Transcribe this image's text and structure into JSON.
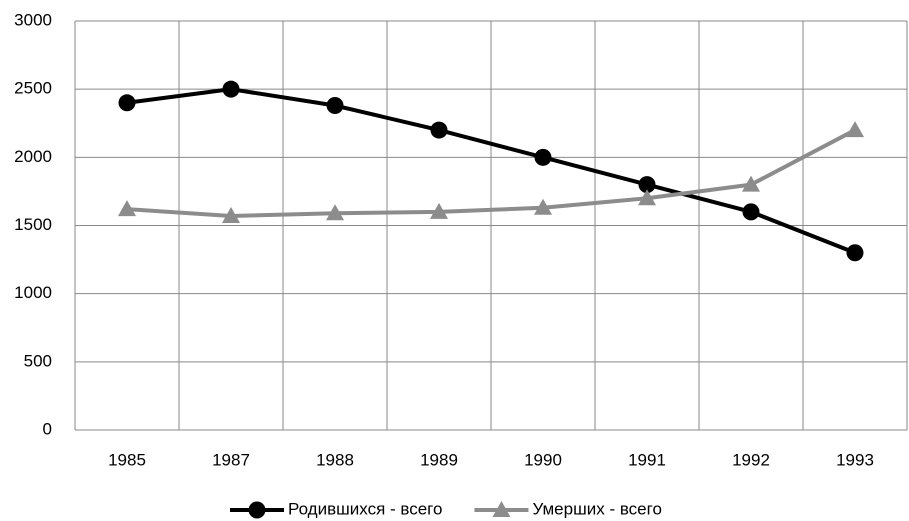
{
  "chart_data": {
    "type": "line",
    "categories": [
      "1985",
      "1987",
      "1988",
      "1989",
      "1990",
      "1991",
      "1992",
      "1993"
    ],
    "series": [
      {
        "name": "Родившихся - всего",
        "color": "#000000",
        "marker": "circle",
        "values": [
          2400,
          2500,
          2380,
          2200,
          2000,
          1800,
          1600,
          1300
        ]
      },
      {
        "name": "Умерших - всего",
        "color": "#8c8c8c",
        "marker": "triangle",
        "values": [
          1620,
          1570,
          1590,
          1600,
          1630,
          1700,
          1800,
          2200
        ]
      }
    ],
    "ylim": [
      0,
      3000
    ],
    "yticks": [
      0,
      500,
      1000,
      1500,
      2000,
      2500,
      3000
    ],
    "grid": true,
    "legend": "bottom"
  }
}
